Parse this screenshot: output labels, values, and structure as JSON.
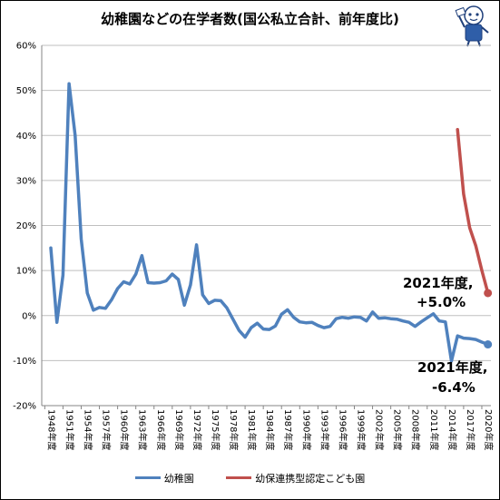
{
  "title": "幼稚園などの在学者数(国公私立合計、前年度比)",
  "chart_data": {
    "type": "line",
    "title": "幼稚園などの在学者数(国公私立合計、前年度比)",
    "ylim": [
      -0.2,
      0.6
    ],
    "y_ticks": [
      "-20%",
      "-10%",
      "0%",
      "10%",
      "20%",
      "30%",
      "40%",
      "50%",
      "60%"
    ],
    "x_tick_labels": [
      "1948年度",
      "1951年度",
      "1954年度",
      "1957年度",
      "1960年度",
      "1963年度",
      "1966年度",
      "1969年度",
      "1972年度",
      "1975年度",
      "1978年度",
      "1981年度",
      "1984年度",
      "1987年度",
      "1990年度",
      "1993年度",
      "1996年度",
      "1999年度",
      "2002年度",
      "2005年度",
      "2008年度",
      "2011年度",
      "2014年度",
      "2017年度",
      "2020年度"
    ],
    "x_start": 1948,
    "x_end": 2021,
    "grid": true,
    "legend_position": "bottom",
    "series": [
      {
        "name": "幼稚園",
        "color": "#4f81bd",
        "x": [
          1949,
          1950,
          1951,
          1952,
          1953,
          1954,
          1955,
          1956,
          1957,
          1958,
          1959,
          1960,
          1961,
          1962,
          1963,
          1964,
          1965,
          1966,
          1967,
          1968,
          1969,
          1970,
          1971,
          1972,
          1973,
          1974,
          1975,
          1976,
          1977,
          1978,
          1979,
          1980,
          1981,
          1982,
          1983,
          1984,
          1985,
          1986,
          1987,
          1988,
          1989,
          1990,
          1991,
          1992,
          1993,
          1994,
          1995,
          1996,
          1997,
          1998,
          1999,
          2000,
          2001,
          2002,
          2003,
          2004,
          2005,
          2006,
          2007,
          2008,
          2009,
          2010,
          2011,
          2012,
          2013,
          2014,
          2015,
          2016,
          2017,
          2018,
          2019,
          2020,
          2021
        ],
        "y": [
          0.15,
          -0.015,
          0.09,
          0.515,
          0.4,
          0.17,
          0.05,
          0.012,
          0.018,
          0.016,
          0.035,
          0.06,
          0.075,
          0.07,
          0.092,
          0.133,
          0.073,
          0.072,
          0.073,
          0.077,
          0.092,
          0.08,
          0.023,
          0.068,
          0.157,
          0.046,
          0.027,
          0.034,
          0.033,
          0.017,
          -0.008,
          -0.033,
          -0.048,
          -0.027,
          -0.017,
          -0.03,
          -0.031,
          -0.023,
          0.003,
          0.013,
          -0.004,
          -0.014,
          -0.016,
          -0.015,
          -0.022,
          -0.027,
          -0.024,
          -0.007,
          -0.004,
          -0.006,
          -0.003,
          -0.004,
          -0.012,
          0.008,
          -0.006,
          -0.005,
          -0.007,
          -0.008,
          -0.012,
          -0.015,
          -0.024,
          -0.014,
          -0.005,
          0.004,
          -0.012,
          -0.014,
          -0.101,
          -0.045,
          -0.05,
          -0.051,
          -0.053,
          -0.059,
          -0.064
        ]
      },
      {
        "name": "幼保連携型認定こども園",
        "color": "#c0504d",
        "x": [
          2016,
          2017,
          2018,
          2019,
          2020,
          2021
        ],
        "y": [
          0.413,
          0.27,
          0.195,
          0.155,
          0.1,
          0.05
        ]
      }
    ]
  },
  "annotations": [
    {
      "line1": "2021年度,",
      "line2": "+5.0%"
    },
    {
      "line1": "2021年度,",
      "line2": "-6.4%"
    }
  ],
  "legend": {
    "item1": "幼稚園",
    "item2": "幼保連携型認定こども園"
  }
}
